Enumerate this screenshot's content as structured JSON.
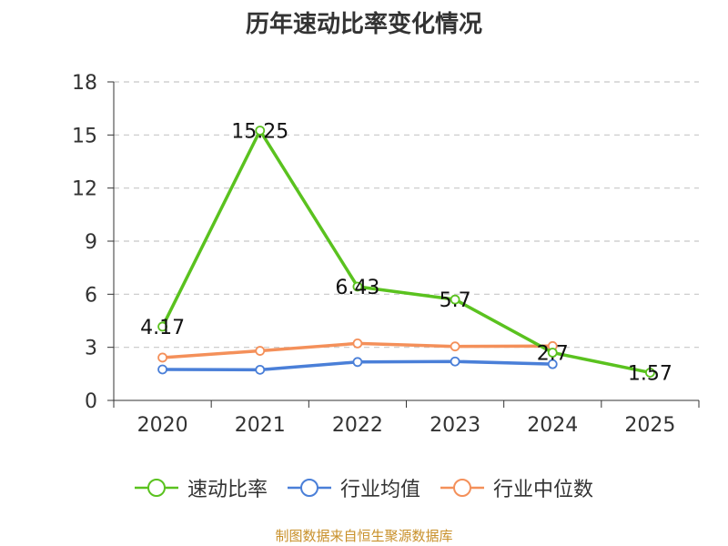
{
  "chart_data": {
    "type": "line",
    "title": "历年速动比率变化情况",
    "categories": [
      "2020",
      "2021",
      "2022",
      "2023",
      "2024",
      "2025"
    ],
    "ylim": [
      0,
      18
    ],
    "yticks": [
      0,
      3,
      6,
      9,
      12,
      15,
      18
    ],
    "ytick_labels": [
      "0",
      "3",
      "6",
      "9",
      "12",
      "15",
      "18"
    ],
    "grid": "horizontal dashed",
    "legend_position": "bottom",
    "series": [
      {
        "name": "速动比率",
        "color": "#5ac21f",
        "values": [
          4.17,
          15.25,
          6.43,
          5.7,
          2.7,
          1.57
        ],
        "labels": [
          "4.17",
          "15.25",
          "6.43",
          "5.7",
          "2.7",
          "1.57"
        ]
      },
      {
        "name": "行业均值",
        "color": "#4a7fd8",
        "values": [
          1.75,
          1.73,
          2.17,
          2.2,
          2.05,
          null
        ]
      },
      {
        "name": "行业中位数",
        "color": "#f4905a",
        "values": [
          2.42,
          2.8,
          3.22,
          3.05,
          3.07,
          null
        ]
      }
    ]
  },
  "source": "制图数据来自恒生聚源数据库"
}
